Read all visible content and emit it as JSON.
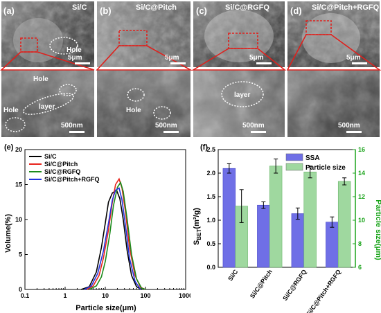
{
  "sem_panels": [
    {
      "letter": "(a)",
      "title": "Si/C",
      "top_scale": "5μm",
      "bottom_scale": "500nm",
      "labels": [
        "Hole",
        "Hole",
        "layer",
        "Hole"
      ]
    },
    {
      "letter": "(b)",
      "title": "Si/C@Pitch",
      "top_scale": "5μm",
      "bottom_scale": "500nm",
      "labels": [
        "Hole"
      ]
    },
    {
      "letter": "(c)",
      "title": "Si/C@RGFQ",
      "top_scale": "5μm",
      "bottom_scale": "500nm",
      "labels": [
        "layer"
      ]
    },
    {
      "letter": "(d)",
      "title": "Si/C@Pitch+RGFQ",
      "top_scale": "5μm",
      "bottom_scale": "500nm",
      "labels": []
    }
  ],
  "colors": {
    "black": "#000000",
    "red": "#e8231c",
    "green": "#1c8b1c",
    "blue": "#2233dd",
    "ssa_bar": "#6f6fe6",
    "psize_bar": "#9fd89f",
    "right_axis": "#18a318"
  },
  "chart_data": [
    {
      "type": "line",
      "panel": "(e)",
      "xlabel": "Particle size(μm)",
      "ylabel": "Volume(%)",
      "xscale": "log",
      "xlim": [
        0.1,
        1000
      ],
      "ylim": [
        0,
        20
      ],
      "xticks": [
        "0.1",
        "1",
        "10",
        "100",
        "1000"
      ],
      "yticks": [
        "0",
        "5",
        "10",
        "15",
        "20"
      ],
      "legend_position": "top-left",
      "series": [
        {
          "name": "Si/C",
          "color": "#000000",
          "points": [
            [
              2.5,
              0
            ],
            [
              4,
              0.4
            ],
            [
              6,
              2.5
            ],
            [
              8,
              6
            ],
            [
              10,
              9.5
            ],
            [
              12,
              12.5
            ],
            [
              15,
              13.8
            ],
            [
              19,
              14.2
            ],
            [
              23,
              13
            ],
            [
              28,
              10
            ],
            [
              35,
              5.5
            ],
            [
              45,
              2
            ],
            [
              60,
              0.4
            ],
            [
              80,
              0
            ]
          ]
        },
        {
          "name": "Si/C@Pitch",
          "color": "#e8231c",
          "points": [
            [
              3.5,
              0
            ],
            [
              5,
              0.5
            ],
            [
              7,
              2
            ],
            [
              9,
              4.5
            ],
            [
              12,
              8.5
            ],
            [
              15,
              12.5
            ],
            [
              18,
              15
            ],
            [
              22,
              15.8
            ],
            [
              26,
              14.5
            ],
            [
              32,
              11
            ],
            [
              40,
              6
            ],
            [
              55,
              2
            ],
            [
              75,
              0.3
            ],
            [
              100,
              0
            ]
          ]
        },
        {
          "name": "Si/C@RGFQ",
          "color": "#1c8b1c",
          "points": [
            [
              4,
              0
            ],
            [
              6,
              0.5
            ],
            [
              8,
              1.8
            ],
            [
              10,
              4
            ],
            [
              13,
              8
            ],
            [
              16,
              12
            ],
            [
              20,
              14.6
            ],
            [
              24,
              15.3
            ],
            [
              28,
              14
            ],
            [
              35,
              10
            ],
            [
              45,
              5
            ],
            [
              60,
              1.5
            ],
            [
              80,
              0.2
            ],
            [
              100,
              0
            ]
          ]
        },
        {
          "name": "Si/C@Pitch+RGFQ",
          "color": "#2233dd",
          "points": [
            [
              3,
              0
            ],
            [
              4.5,
              0.5
            ],
            [
              6.5,
              2.3
            ],
            [
              9,
              5.5
            ],
            [
              12,
              9.5
            ],
            [
              15,
              12.8
            ],
            [
              18,
              14.2
            ],
            [
              22,
              14.5
            ],
            [
              26,
              12.8
            ],
            [
              32,
              9
            ],
            [
              40,
              4.5
            ],
            [
              55,
              1.2
            ],
            [
              75,
              0
            ]
          ]
        }
      ]
    },
    {
      "type": "bar",
      "panel": "(f)",
      "categories": [
        "Si/C",
        "Si/C@Pitch",
        "Si/C@RGFQ",
        "Si/C@Pitch+RGFQ"
      ],
      "ylabel_left": "S",
      "ylabel_left_sub": "BET",
      "ylabel_left_unit": "(m²/g)",
      "ylabel_right": "Particle size(μm)",
      "ylim_left": [
        0,
        2.5
      ],
      "ylim_right": [
        6,
        16
      ],
      "yticks_left": [
        "0.0",
        "0.5",
        "1.0",
        "1.5",
        "2.0",
        "2.5"
      ],
      "yticks_right": [
        "6",
        "8",
        "10",
        "12",
        "14",
        "16"
      ],
      "legend_position": "top-right",
      "series": [
        {
          "name": "SSA",
          "axis": "left",
          "color": "#6f6fe6",
          "values": [
            2.1,
            1.32,
            1.14,
            0.96
          ],
          "errors": [
            0.1,
            0.07,
            0.12,
            0.11
          ]
        },
        {
          "name": "Particle size",
          "axis": "right",
          "color": "#9fd89f",
          "values": [
            11.2,
            14.6,
            14.1,
            13.3
          ],
          "errors": [
            1.4,
            0.6,
            0.5,
            0.3
          ]
        }
      ]
    }
  ]
}
